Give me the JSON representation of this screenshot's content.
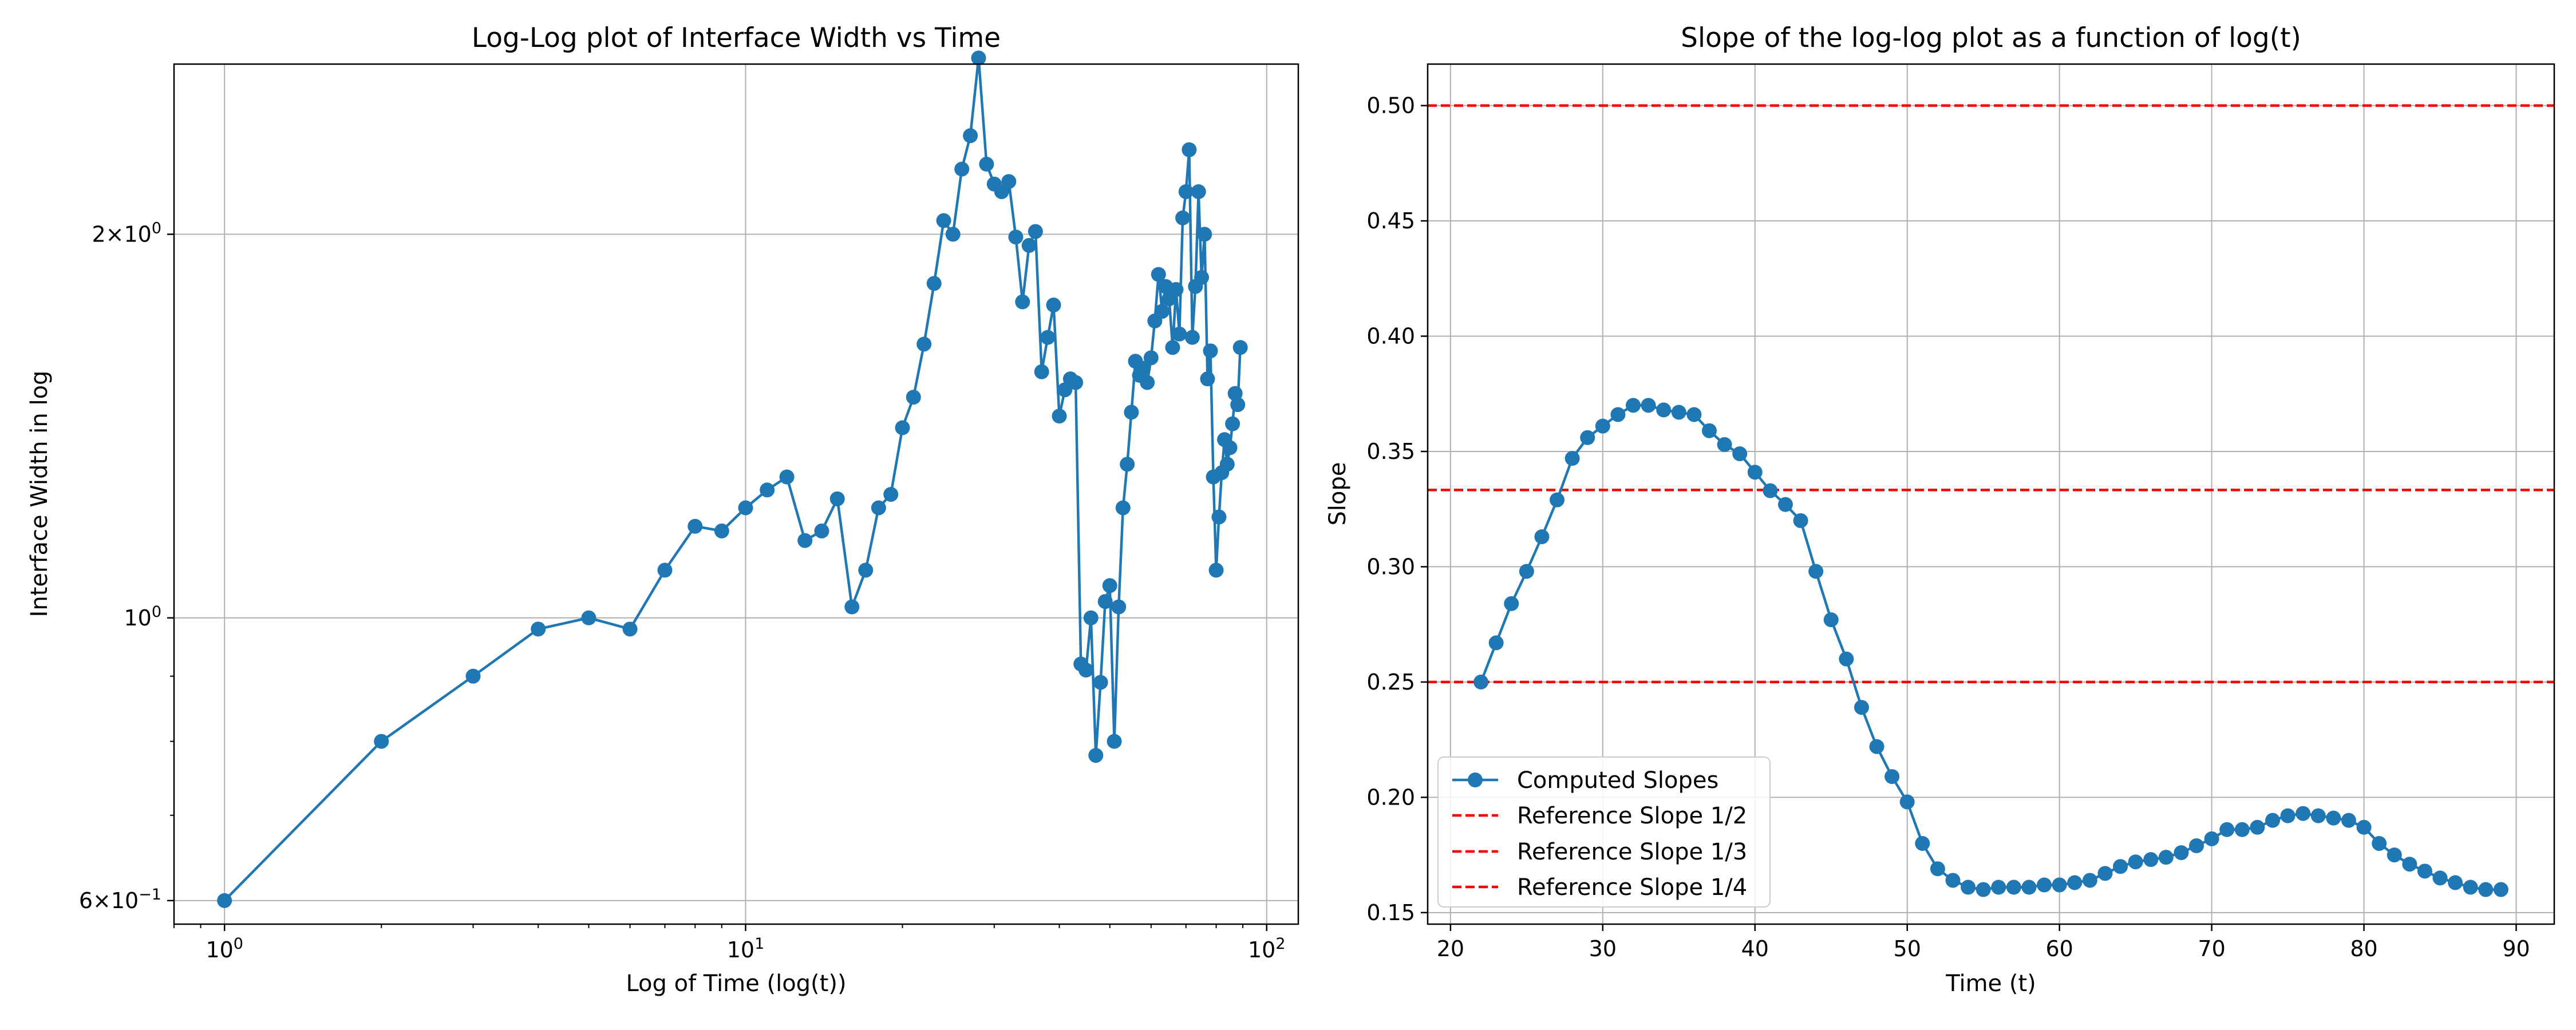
{
  "chart_data": [
    {
      "type": "line",
      "title": "Log-Log plot of Interface Width vs Time",
      "xlabel": "Log of Time (log(t))",
      "ylabel": "Interface Width in log",
      "xscale": "log",
      "yscale": "log",
      "xlim": [
        0.8,
        115
      ],
      "ylim": [
        0.575,
        2.72
      ],
      "xticks": [
        {
          "value": 1,
          "base": "10",
          "exp": "0"
        },
        {
          "value": 10,
          "base": "10",
          "exp": "1"
        },
        {
          "value": 100,
          "base": "10",
          "exp": "2"
        }
      ],
      "yticks": [
        {
          "value": 0.6,
          "mant": "6",
          "base": "10",
          "exp": "−1"
        },
        {
          "value": 1,
          "mant": "",
          "base": "10",
          "exp": "0"
        },
        {
          "value": 2,
          "mant": "2",
          "base": "10",
          "exp": "0"
        }
      ],
      "grid": true,
      "color": "#1f77b4",
      "series": [
        {
          "x": [
            1,
            2,
            3,
            4,
            5,
            6,
            7,
            8,
            9,
            10,
            11,
            12,
            13,
            14,
            15,
            16,
            17,
            18,
            19,
            20,
            21,
            22,
            23,
            24,
            25,
            26,
            27,
            28,
            29,
            30,
            31,
            32,
            33,
            34,
            35,
            36,
            37,
            38,
            39,
            40,
            41,
            42,
            43,
            44,
            45,
            46,
            47,
            48,
            49,
            50,
            51,
            52,
            53,
            54,
            55,
            56,
            57,
            58,
            59,
            60,
            61,
            62,
            63,
            64,
            65,
            66,
            67,
            68,
            69,
            70,
            71,
            72,
            73,
            74,
            75,
            76,
            77,
            78,
            79,
            80,
            81,
            82,
            83,
            84,
            85,
            86,
            87,
            88,
            89
          ],
          "y": [
            0.6,
            0.8,
            0.9,
            0.98,
            1.0,
            0.98,
            1.09,
            1.18,
            1.17,
            1.22,
            1.26,
            1.29,
            1.15,
            1.17,
            1.24,
            1.02,
            1.09,
            1.22,
            1.25,
            1.41,
            1.49,
            1.64,
            1.83,
            2.05,
            2.0,
            2.25,
            2.39,
            2.75,
            2.27,
            2.19,
            2.16,
            2.2,
            1.99,
            1.77,
            1.96,
            2.01,
            1.56,
            1.66,
            1.76,
            1.44,
            1.51,
            1.54,
            1.53,
            0.92,
            0.91,
            1.0,
            0.78,
            0.89,
            1.03,
            1.06,
            0.8,
            1.02,
            1.22,
            1.32,
            1.45,
            1.59,
            1.55,
            1.57,
            1.53,
            1.6,
            1.71,
            1.86,
            1.74,
            1.82,
            1.78,
            1.63,
            1.81,
            1.67,
            2.06,
            2.16,
            2.33,
            1.66,
            1.82,
            2.16,
            1.85,
            2.0,
            1.54,
            1.62,
            1.29,
            1.09,
            1.2,
            1.3,
            1.38,
            1.32,
            1.36,
            1.42,
            1.5,
            1.47,
            1.63
          ]
        }
      ]
    },
    {
      "type": "line",
      "title": "Slope of the log-log plot as a function of log(t)",
      "xlabel": "Time (t)",
      "ylabel": "Slope",
      "xlim": [
        18.5,
        92.5
      ],
      "ylim": [
        0.145,
        0.518
      ],
      "xticks": [
        20,
        30,
        40,
        50,
        60,
        70,
        80,
        90
      ],
      "xtick_labels": [
        "20",
        "30",
        "40",
        "50",
        "60",
        "70",
        "80",
        "90"
      ],
      "yticks": [
        0.15,
        0.2,
        0.25,
        0.3,
        0.35,
        0.4,
        0.45,
        0.5
      ],
      "ytick_labels": [
        "0.15",
        "0.20",
        "0.25",
        "0.30",
        "0.35",
        "0.40",
        "0.45",
        "0.50"
      ],
      "grid": true,
      "legend_position": "lower-left",
      "series": [
        {
          "name": "Computed Slopes",
          "color": "#1f77b4",
          "x": [
            22,
            23,
            24,
            25,
            26,
            27,
            28,
            29,
            30,
            31,
            32,
            33,
            34,
            35,
            36,
            37,
            38,
            39,
            40,
            41,
            42,
            43,
            44,
            45,
            46,
            47,
            48,
            49,
            50,
            51,
            52,
            53,
            54,
            55,
            56,
            57,
            58,
            59,
            60,
            61,
            62,
            63,
            64,
            65,
            66,
            67,
            68,
            69,
            70,
            71,
            72,
            73,
            74,
            75,
            76,
            77,
            78,
            79,
            80,
            81,
            82,
            83,
            84,
            85,
            86,
            87,
            88,
            89
          ],
          "y": [
            0.25,
            0.267,
            0.284,
            0.298,
            0.313,
            0.329,
            0.347,
            0.356,
            0.361,
            0.366,
            0.37,
            0.37,
            0.368,
            0.367,
            0.366,
            0.359,
            0.353,
            0.349,
            0.341,
            0.333,
            0.327,
            0.32,
            0.298,
            0.277,
            0.26,
            0.239,
            0.222,
            0.209,
            0.198,
            0.18,
            0.169,
            0.164,
            0.161,
            0.16,
            0.161,
            0.161,
            0.161,
            0.162,
            0.162,
            0.163,
            0.164,
            0.167,
            0.17,
            0.172,
            0.173,
            0.174,
            0.176,
            0.179,
            0.182,
            0.186,
            0.186,
            0.187,
            0.19,
            0.192,
            0.193,
            0.192,
            0.191,
            0.19,
            0.187,
            0.18,
            0.175,
            0.171,
            0.168,
            0.165,
            0.163,
            0.161,
            0.16,
            0.16
          ]
        },
        {
          "name": "Reference Slope 1/2",
          "color": "#ff0000",
          "style": "dashed",
          "y_const": 0.5
        },
        {
          "name": "Reference Slope 1/3",
          "color": "#ff0000",
          "style": "dashed",
          "y_const": 0.3333
        },
        {
          "name": "Reference Slope 1/4",
          "color": "#ff0000",
          "style": "dashed",
          "y_const": 0.25
        }
      ]
    }
  ]
}
